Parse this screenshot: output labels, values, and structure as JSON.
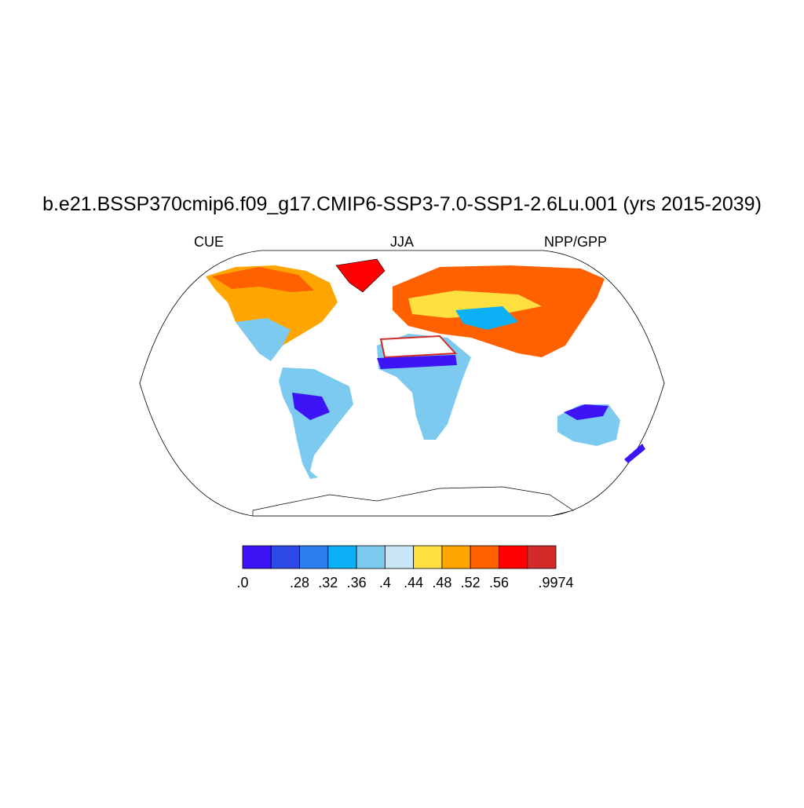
{
  "chart_data": {
    "type": "map",
    "title": "b.e21.BSSP370cmip6.f09_g17.CMIP6-SSP3-7.0-SSP1-2.6Lu.001 (yrs 2015-2039)",
    "left_label": "CUE",
    "center_label": "JJA",
    "right_label": "NPP/GPP",
    "colorbar": {
      "colors": [
        "#3c14f5",
        "#2e4ae6",
        "#2a7ef0",
        "#0cb0f5",
        "#7ccaf0",
        "#c8e6f5",
        "#ffe040",
        "#ffa500",
        "#ff6000",
        "#ff0000",
        "#d42a2a"
      ],
      "labels": [
        ".0",
        null,
        ".28",
        ".32",
        ".36",
        ".4",
        ".44",
        ".48",
        ".52",
        ".56",
        null,
        ".9974"
      ]
    }
  }
}
